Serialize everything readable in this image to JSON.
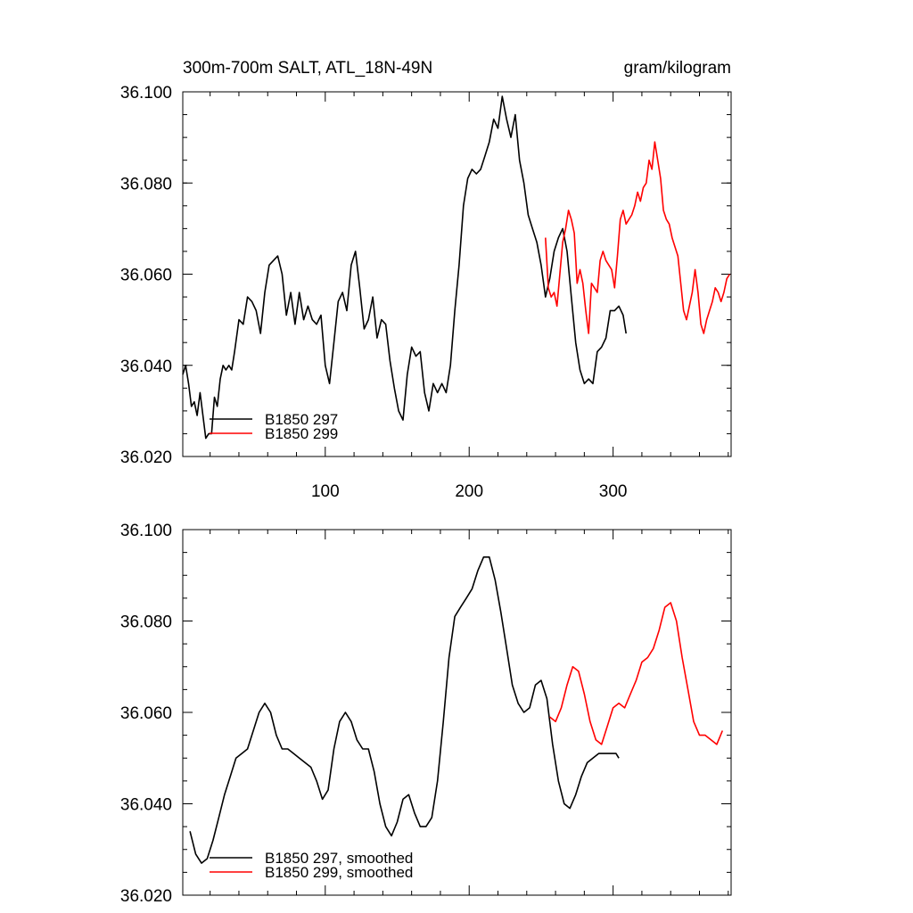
{
  "chart_data": [
    {
      "type": "line",
      "title": "300m-700m SALT, ATL_18N-49N",
      "units": "gram/kilogram",
      "xlim": [
        1,
        382
      ],
      "ylim": [
        36.02,
        36.1
      ],
      "x_ticks": [
        100,
        200,
        300
      ],
      "x_tick_labels": [
        "100",
        "200",
        "300"
      ],
      "y_ticks": [
        36.02,
        36.04,
        36.06,
        36.08,
        36.1
      ],
      "y_tick_labels": [
        "36.020",
        "36.040",
        "36.060",
        "36.080",
        "36.100"
      ],
      "legend_position": "lower-left",
      "series": [
        {
          "name": "B1850 297",
          "color": "#000000",
          "x": [
            1,
            3,
            5,
            7,
            9,
            11,
            13,
            15,
            17,
            19,
            21,
            23,
            25,
            27,
            29,
            31,
            33,
            35,
            37,
            40,
            43,
            46,
            49,
            52,
            55,
            58,
            61,
            64,
            67,
            70,
            73,
            76,
            79,
            82,
            85,
            88,
            91,
            94,
            97,
            100,
            103,
            106,
            109,
            112,
            115,
            118,
            121,
            124,
            127,
            130,
            133,
            136,
            139,
            142,
            145,
            148,
            151,
            154,
            157,
            160,
            163,
            166,
            169,
            172,
            175,
            178,
            181,
            184,
            187,
            190,
            193,
            196,
            199,
            202,
            205,
            208,
            211,
            214,
            217,
            220,
            223,
            226,
            229,
            232,
            235,
            238,
            241,
            244,
            247,
            250,
            253,
            256,
            259,
            262,
            265,
            268,
            271,
            274,
            277,
            280,
            283,
            286,
            289,
            292,
            295,
            298,
            301,
            304,
            307,
            309
          ],
          "values": [
            36.038,
            36.04,
            36.036,
            36.031,
            36.032,
            36.029,
            36.034,
            36.029,
            36.024,
            36.025,
            36.025,
            36.033,
            36.031,
            36.037,
            36.04,
            36.039,
            36.04,
            36.039,
            36.043,
            36.05,
            36.049,
            36.055,
            36.054,
            36.052,
            36.047,
            36.056,
            36.062,
            36.063,
            36.064,
            36.06,
            36.051,
            36.056,
            36.049,
            36.056,
            36.05,
            36.053,
            36.05,
            36.049,
            36.051,
            36.04,
            36.036,
            36.045,
            36.054,
            36.056,
            36.052,
            36.062,
            36.065,
            36.057,
            36.048,
            36.05,
            36.055,
            36.046,
            36.05,
            36.049,
            36.041,
            36.035,
            36.03,
            36.028,
            36.038,
            36.044,
            36.042,
            36.043,
            36.034,
            36.03,
            36.036,
            36.034,
            36.036,
            36.034,
            36.04,
            36.052,
            36.062,
            36.075,
            36.081,
            36.083,
            36.082,
            36.083,
            36.086,
            36.089,
            36.094,
            36.092,
            36.099,
            36.094,
            36.09,
            36.095,
            36.085,
            36.08,
            36.073,
            36.07,
            36.067,
            36.062,
            36.055,
            36.059,
            36.065,
            36.068,
            36.07,
            36.065,
            36.055,
            36.045,
            36.039,
            36.036,
            36.037,
            36.036,
            36.043,
            36.044,
            36.046,
            36.052,
            36.052,
            36.053,
            36.051,
            36.047
          ]
        },
        {
          "name": "B1850 299",
          "color": "#ff0000",
          "x": [
            253,
            255,
            257,
            259,
            261,
            263,
            265,
            267,
            269,
            271,
            273,
            275,
            277,
            279,
            281,
            283,
            285,
            287,
            289,
            291,
            293,
            295,
            297,
            299,
            301,
            303,
            305,
            307,
            309,
            311,
            313,
            315,
            317,
            319,
            321,
            323,
            325,
            327,
            329,
            331,
            333,
            335,
            337,
            339,
            341,
            343,
            345,
            347,
            349,
            351,
            353,
            355,
            357,
            359,
            361,
            363,
            365,
            367,
            369,
            371,
            373,
            375,
            377,
            379,
            381
          ],
          "values": [
            36.068,
            36.057,
            36.055,
            36.056,
            36.053,
            36.06,
            36.067,
            36.07,
            36.074,
            36.072,
            36.069,
            36.058,
            36.061,
            36.058,
            36.052,
            36.047,
            36.058,
            36.057,
            36.056,
            36.063,
            36.065,
            36.063,
            36.062,
            36.061,
            36.057,
            36.064,
            36.072,
            36.074,
            36.071,
            36.072,
            36.073,
            36.075,
            36.078,
            36.076,
            36.079,
            36.08,
            36.085,
            36.083,
            36.089,
            36.085,
            36.081,
            36.074,
            36.072,
            36.071,
            36.068,
            36.066,
            36.064,
            36.058,
            36.052,
            36.05,
            36.053,
            36.056,
            36.061,
            36.056,
            36.049,
            36.047,
            36.05,
            36.052,
            36.054,
            36.057,
            36.056,
            36.054,
            36.056,
            36.059,
            36.06
          ]
        }
      ]
    },
    {
      "type": "line",
      "xlim": [
        1,
        382
      ],
      "ylim": [
        36.02,
        36.1
      ],
      "x_ticks": [
        100,
        200,
        300
      ],
      "y_ticks": [
        36.02,
        36.04,
        36.06,
        36.08,
        36.1
      ],
      "y_tick_labels": [
        "36.020",
        "36.040",
        "36.060",
        "36.080",
        "36.100"
      ],
      "legend_position": "lower-left",
      "series": [
        {
          "name": "B1850 297, smoothed",
          "color": "#000000",
          "x": [
            6,
            10,
            14,
            18,
            22,
            26,
            30,
            34,
            38,
            42,
            46,
            50,
            54,
            58,
            62,
            66,
            70,
            74,
            78,
            82,
            86,
            90,
            94,
            98,
            102,
            106,
            110,
            114,
            118,
            122,
            126,
            130,
            134,
            138,
            142,
            146,
            150,
            154,
            158,
            162,
            166,
            170,
            174,
            178,
            182,
            186,
            190,
            194,
            198,
            202,
            206,
            210,
            214,
            218,
            222,
            226,
            230,
            234,
            238,
            242,
            246,
            250,
            254,
            258,
            262,
            266,
            270,
            274,
            278,
            282,
            286,
            290,
            294,
            298,
            302,
            304
          ],
          "values": [
            36.034,
            36.029,
            36.027,
            36.028,
            36.032,
            36.037,
            36.042,
            36.046,
            36.05,
            36.051,
            36.052,
            36.056,
            36.06,
            36.062,
            36.06,
            36.055,
            36.052,
            36.052,
            36.051,
            36.05,
            36.049,
            36.048,
            36.045,
            36.041,
            36.043,
            36.052,
            36.058,
            36.06,
            36.058,
            36.054,
            36.052,
            36.052,
            36.047,
            36.04,
            36.035,
            36.033,
            36.036,
            36.041,
            36.042,
            36.038,
            36.035,
            36.035,
            36.037,
            36.045,
            36.058,
            36.072,
            36.081,
            36.083,
            36.085,
            36.087,
            36.091,
            36.094,
            36.094,
            36.089,
            36.082,
            36.074,
            36.066,
            36.062,
            36.06,
            36.061,
            36.066,
            36.067,
            36.063,
            36.053,
            36.045,
            36.04,
            36.039,
            36.042,
            36.046,
            36.049,
            36.05,
            36.051,
            36.051,
            36.051,
            36.051,
            36.05
          ]
        },
        {
          "name": "B1850 299, smoothed",
          "color": "#ff0000",
          "x": [
            256,
            260,
            264,
            268,
            272,
            276,
            280,
            284,
            288,
            292,
            296,
            300,
            304,
            308,
            312,
            316,
            320,
            324,
            328,
            332,
            336,
            340,
            344,
            348,
            352,
            356,
            360,
            364,
            368,
            372,
            376
          ],
          "values": [
            36.059,
            36.058,
            36.061,
            36.066,
            36.07,
            36.069,
            36.064,
            36.058,
            36.054,
            36.053,
            36.057,
            36.061,
            36.062,
            36.061,
            36.064,
            36.067,
            36.071,
            36.072,
            36.074,
            36.078,
            36.083,
            36.084,
            36.08,
            36.072,
            36.065,
            36.058,
            36.055,
            36.055,
            36.054,
            36.053,
            36.056
          ]
        }
      ]
    }
  ]
}
